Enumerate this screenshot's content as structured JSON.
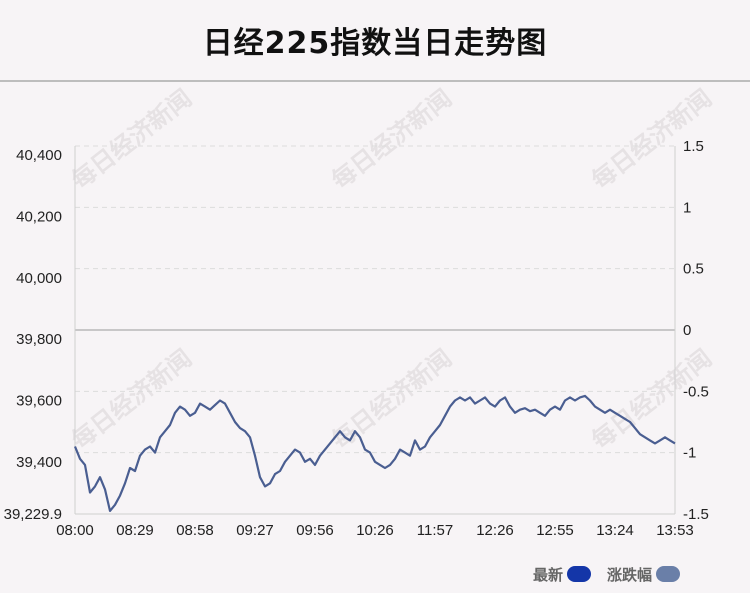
{
  "header": {
    "title": "日经225指数当日走势图"
  },
  "watermark": {
    "text": "每日经济新闻"
  },
  "legend": [
    {
      "label": "最新",
      "color": "#1436a8"
    },
    {
      "label": "涨跌幅",
      "color": "#6a7fa8"
    }
  ],
  "chart_data": {
    "type": "line",
    "x_ticks": [
      "08:00",
      "08:29",
      "08:58",
      "09:27",
      "09:56",
      "10:26",
      "11:57",
      "12:26",
      "12:55",
      "13:24",
      "13:53"
    ],
    "y_left_ticks": [
      "40,400",
      "40,200",
      "40,000",
      "39,800",
      "39,600",
      "39,400",
      "39,229.9"
    ],
    "y_right_ticks": [
      "1.5",
      "1",
      "0.5",
      "0",
      "-0.5",
      "-1",
      "-1.5"
    ],
    "ylim_left": [
      39229.9,
      40430
    ],
    "ylim_right": [
      -1.5,
      1.5
    ],
    "baseline": 39830,
    "line_color": "#4a5e91",
    "series": [
      {
        "values": [
          39450,
          39410,
          39390,
          39300,
          39320,
          39350,
          39310,
          39240,
          39260,
          39290,
          39330,
          39380,
          39370,
          39420,
          39440,
          39450,
          39430,
          39480,
          39500,
          39520,
          39560,
          39580,
          39570,
          39550,
          39560,
          39590,
          39580,
          39570,
          39585,
          39600,
          39590,
          39560,
          39530,
          39510,
          39500,
          39480,
          39420,
          39350,
          39320,
          39330,
          39360,
          39370,
          39400,
          39420,
          39440,
          39430,
          39400,
          39410,
          39390,
          39420,
          39440,
          39460,
          39480,
          39500,
          39480,
          39470,
          39500,
          39480,
          39440,
          39430,
          39400,
          39390,
          39380,
          39390,
          39410,
          39440,
          39430,
          39420,
          39470,
          39440,
          39450,
          39480,
          39500,
          39520,
          39550,
          39580,
          39600,
          39610,
          39600,
          39610,
          39590,
          39600,
          39610,
          39590,
          39580,
          39600,
          39610,
          39580,
          39560,
          39570,
          39575,
          39565,
          39570,
          39560,
          39550,
          39570,
          39580,
          39570,
          39600,
          39610,
          39600,
          39610,
          39615,
          39600,
          39580,
          39570,
          39560,
          39570,
          39560,
          39550,
          39540,
          39530,
          39510,
          39490,
          39480,
          39470,
          39460,
          39470,
          39480,
          39470,
          39460
        ]
      }
    ]
  }
}
